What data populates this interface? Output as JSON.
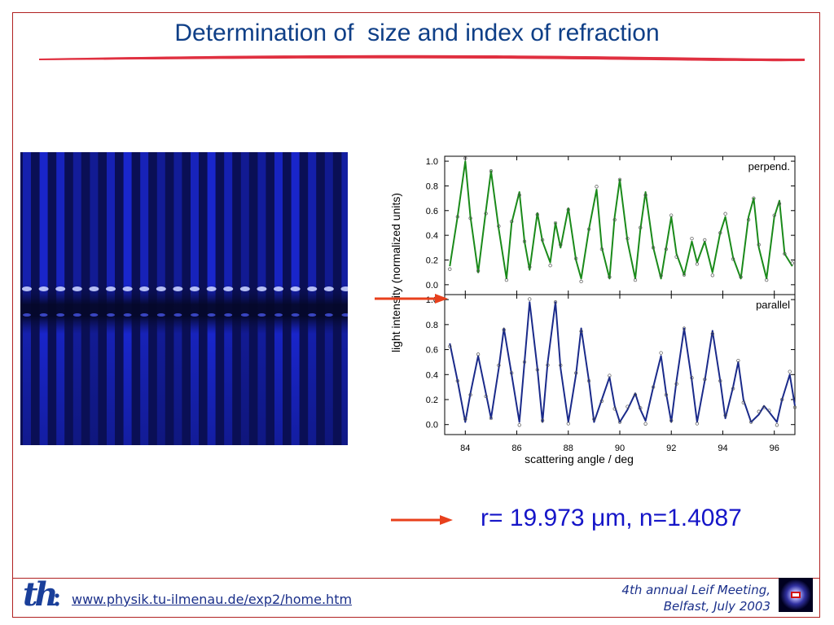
{
  "slide": {
    "title": "Determination of  size and index of refraction",
    "result": "r= 19.973 μm, n=1.4087",
    "footer_url": "www.physik.tu-ilmenau.de/exp2/home.htm",
    "footer_meeting_line1": "4th annual Leif Meeting,",
    "footer_meeting_line2": "Belfast, July 2003",
    "logo_text": "th",
    "colors": {
      "title": "#0f3f87",
      "underline": "#e03040",
      "frame": "#b02020",
      "arrow": "#e8401c",
      "result": "#1515c8",
      "fringe_background": "#0a0f55",
      "fringe_stripe": "#2030ff"
    },
    "icons": [
      "tu-ilmenau-th-logo-icon",
      "leif-conference-logo-icon",
      "right-arrow-icon"
    ]
  },
  "chart_data": {
    "type": "line",
    "xlabel": "scattering angle / deg",
    "ylabel": "light intensity (normalized units)",
    "xlim": [
      83.2,
      96.8
    ],
    "xticks": [
      "84",
      "86",
      "88",
      "90",
      "92",
      "94",
      "96"
    ],
    "ylim": [
      -0.08,
      1.04
    ],
    "yticks": [
      "0.0",
      "0.2",
      "0.4",
      "0.6",
      "0.8",
      "1.0"
    ],
    "grid": false,
    "panels": [
      {
        "label": "perpend.",
        "color": "#1a8a1a",
        "x": [
          83.4,
          83.7,
          84.0,
          84.2,
          84.5,
          84.8,
          85.0,
          85.3,
          85.6,
          85.8,
          86.1,
          86.3,
          86.5,
          86.8,
          87.0,
          87.3,
          87.5,
          87.7,
          88.0,
          88.3,
          88.5,
          88.8,
          89.1,
          89.3,
          89.6,
          89.8,
          90.0,
          90.3,
          90.6,
          90.8,
          91.0,
          91.3,
          91.6,
          91.8,
          92.0,
          92.2,
          92.5,
          92.8,
          93.0,
          93.3,
          93.6,
          93.9,
          94.1,
          94.4,
          94.7,
          95.0,
          95.2,
          95.4,
          95.7,
          96.0,
          96.2,
          96.4,
          96.7
        ],
        "y": [
          0.15,
          0.55,
          1.0,
          0.55,
          0.1,
          0.6,
          0.92,
          0.45,
          0.05,
          0.5,
          0.75,
          0.35,
          0.12,
          0.58,
          0.35,
          0.18,
          0.5,
          0.3,
          0.62,
          0.2,
          0.05,
          0.45,
          0.77,
          0.3,
          0.05,
          0.55,
          0.85,
          0.35,
          0.05,
          0.45,
          0.75,
          0.3,
          0.05,
          0.3,
          0.55,
          0.25,
          0.08,
          0.35,
          0.18,
          0.35,
          0.1,
          0.42,
          0.55,
          0.22,
          0.05,
          0.55,
          0.7,
          0.3,
          0.05,
          0.55,
          0.68,
          0.25,
          0.15
        ]
      },
      {
        "label": "parallel",
        "color": "#1a2a8a",
        "x": [
          83.4,
          83.7,
          84.0,
          84.2,
          84.5,
          84.8,
          85.0,
          85.3,
          85.5,
          85.8,
          86.1,
          86.3,
          86.5,
          86.8,
          87.0,
          87.2,
          87.5,
          87.7,
          88.0,
          88.3,
          88.5,
          88.8,
          89.0,
          89.3,
          89.6,
          89.8,
          90.0,
          90.3,
          90.6,
          90.8,
          91.0,
          91.3,
          91.6,
          91.8,
          92.0,
          92.2,
          92.5,
          92.8,
          93.0,
          93.3,
          93.6,
          93.9,
          94.1,
          94.4,
          94.6,
          94.8,
          95.1,
          95.4,
          95.6,
          95.8,
          96.1,
          96.3,
          96.6,
          96.8
        ],
        "y": [
          0.65,
          0.35,
          0.02,
          0.25,
          0.55,
          0.25,
          0.05,
          0.45,
          0.77,
          0.4,
          0.02,
          0.5,
          0.98,
          0.45,
          0.02,
          0.5,
          0.98,
          0.45,
          0.02,
          0.4,
          0.77,
          0.35,
          0.02,
          0.2,
          0.38,
          0.15,
          0.02,
          0.12,
          0.25,
          0.12,
          0.03,
          0.3,
          0.55,
          0.25,
          0.02,
          0.35,
          0.77,
          0.35,
          0.02,
          0.35,
          0.75,
          0.35,
          0.05,
          0.3,
          0.5,
          0.2,
          0.02,
          0.08,
          0.15,
          0.1,
          0.02,
          0.2,
          0.4,
          0.15
        ]
      }
    ]
  }
}
